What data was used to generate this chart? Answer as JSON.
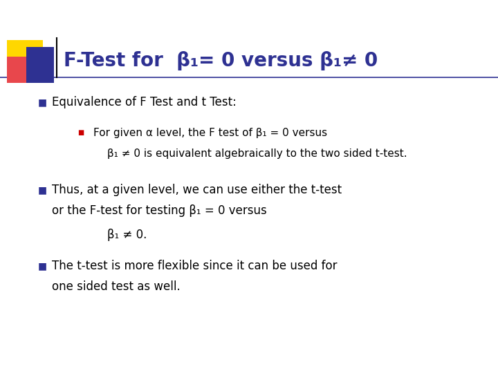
{
  "background_color": "#ffffff",
  "title_color": "#2E3192",
  "title_text": "F-Test for  β₁= 0 versus β₁≠ 0",
  "bullet_color": "#2E3192",
  "sub_bullet_color": "#CC0000",
  "text_color": "#000000",
  "line_color": "#2E3192",
  "bullet1": "Equivalence of F Test and t Test:",
  "sub_bullet1_line1": "For given α level, the F test of β₁ = 0 versus",
  "sub_bullet1_line2": "β₁ ≠ 0 is equivalent algebraically to the two sided t-test.",
  "bullet2_line1": "Thus, at a given level, we can use either the t-test",
  "bullet2_line2": "or the F-test for testing β₁ = 0 versus",
  "bullet2_line3": "β₁ ≠ 0.",
  "bullet3_line1": "The t-test is more flexible since it can be used for",
  "bullet3_line2": "one sided test as well.",
  "title_fs": 20,
  "body_fs": 12,
  "sub_fs": 11
}
